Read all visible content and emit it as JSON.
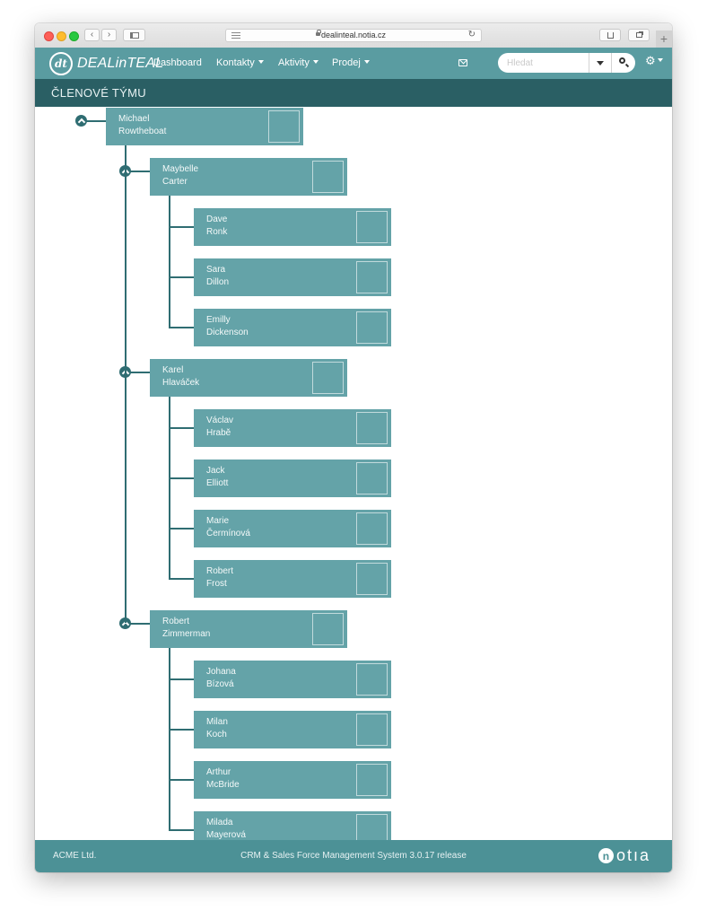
{
  "browser": {
    "url": "dealinteal.notia.cz",
    "new_tab_label": "+"
  },
  "app": {
    "logo_mark": "dt",
    "logo_text": "DEALinTEAL",
    "nav": [
      {
        "label": "Dashboard"
      },
      {
        "label": "Kontakty"
      },
      {
        "label": "Aktivity"
      },
      {
        "label": "Prodej"
      }
    ],
    "search": {
      "placeholder": "Hledat",
      "value": ""
    },
    "settings_icon": "⚙"
  },
  "page": {
    "title": "ČLENOVÉ TÝMU"
  },
  "team": {
    "root": {
      "first": "Michael",
      "last": "Rowtheboat",
      "photo": {
        "hair": "#6b5a48",
        "skin": "#d9ab8c",
        "bg": "#9b8a6f",
        "shirt": "#2e3b4c"
      }
    },
    "groups": [
      {
        "leader": {
          "first": "Maybelle",
          "last": "Carter",
          "photo": {
            "hair": "#2a1a14",
            "skin": "#d8a687",
            "bg": "#c7b8b0",
            "shirt": "#2a1a14"
          }
        },
        "members": [
          {
            "first": "Dave",
            "last": "Ronk",
            "photo": {
              "hair": "#3a2a20",
              "skin": "#c28a66",
              "bg": "#7a6a55",
              "shirt": "#e8e6e3"
            }
          },
          {
            "first": "Sara",
            "last": "Dillon",
            "photo": {
              "hair": "#d6b05a",
              "skin": "#e7c4a5",
              "bg": "#b9a98f",
              "shirt": "#3a3a3a"
            }
          },
          {
            "first": "Emilly",
            "last": "Dickenson",
            "photo": {
              "hair": "#e4c479",
              "skin": "#efc7ad",
              "bg": "#cfc3b6",
              "shirt": "#e0529a"
            }
          }
        ]
      },
      {
        "leader": {
          "first": "Karel",
          "last": "Hlaváček",
          "photo": {
            "hair": "#8b7b60",
            "skin": "#d6a98a",
            "bg": "#a9b3a5",
            "shirt": "#1e2224"
          }
        },
        "members": [
          {
            "first": "Václav",
            "last": "Hrabě",
            "photo": {
              "hair": "#d9b26a",
              "skin": "#e8c2a2",
              "bg": "#b7a783",
              "shirt": "#3b88c8"
            }
          },
          {
            "first": "Jack",
            "last": "Elliott",
            "photo": {
              "hair": "#5c3f2c",
              "skin": "#d69f7d",
              "bg": "#c0b8ab",
              "shirt": "#b4282c"
            }
          },
          {
            "first": "Marie",
            "last": "Čermínová",
            "photo": {
              "hair": "#d6a64f",
              "skin": "#e9c0a0",
              "bg": "#a8765a",
              "shirt": "#2d2a33"
            }
          },
          {
            "first": "Robert",
            "last": "Frost",
            "photo": {
              "hair": "#d3b27a",
              "skin": "#e6bf9e",
              "bg": "#c5b594",
              "shirt": "#8d8a84"
            }
          }
        ]
      },
      {
        "leader": {
          "first": "Robert",
          "last": "Zimmerman",
          "photo": {
            "hair": "#2b231f",
            "skin": "#c99476",
            "bg": "#6f6a64",
            "shirt": "#151515"
          }
        },
        "members": [
          {
            "first": "Johana",
            "last": "Bízová",
            "photo": {
              "hair": "#7a4a2c",
              "skin": "#e0b496",
              "bg": "#c9bda5",
              "shirt": "#caa46f"
            }
          },
          {
            "first": "Milan",
            "last": "Koch",
            "photo": {
              "hair": "#b48a62",
              "skin": "#e2b898",
              "bg": "#d3ccbd",
              "shirt": "#2e3d52"
            }
          },
          {
            "first": "Arthur",
            "last": "McBride",
            "photo": {
              "hair": "#5b4432",
              "skin": "#c99777",
              "bg": "#8c7452",
              "shirt": "#2a2a2e"
            }
          },
          {
            "first": "Milada",
            "last": "Mayerová",
            "photo": {
              "hair": "#e6d3a6",
              "skin": "#f0cfb6",
              "bg": "#cfc9bf",
              "shirt": "#dcd6cc"
            }
          }
        ]
      }
    ]
  },
  "footer": {
    "company": "ACME Ltd.",
    "version": "CRM & Sales Force Management System 3.0.17 release",
    "brand_mark": "n",
    "brand_text": "otıa"
  }
}
